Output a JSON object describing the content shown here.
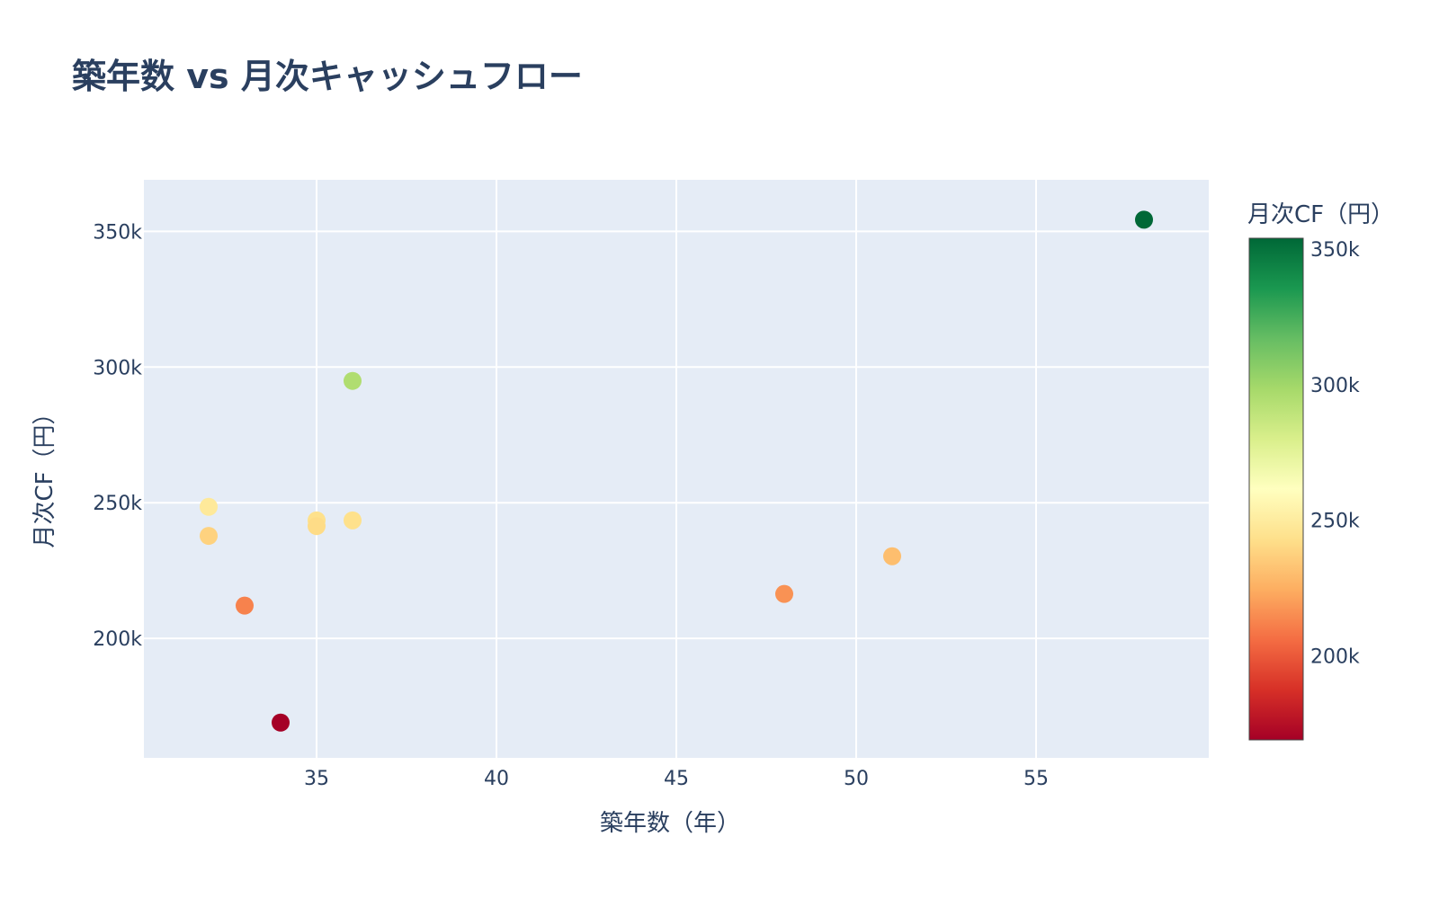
{
  "chart_data": {
    "type": "scatter",
    "title": "築年数 vs 月次キャッシュフロー",
    "xlabel": "築年数（年）",
    "ylabel": "月次CF（円）",
    "xlim": [
      30.2,
      59.8
    ],
    "ylim": [
      156000,
      369000
    ],
    "x_ticks": [
      35,
      40,
      45,
      50,
      55
    ],
    "x_tick_labels": [
      "35",
      "40",
      "45",
      "50",
      "55"
    ],
    "y_ticks": [
      200000,
      250000,
      300000,
      350000
    ],
    "y_tick_labels": [
      "200k",
      "250k",
      "300k",
      "350k"
    ],
    "grid": true,
    "legend": "none",
    "colorbar": {
      "title": "月次CF（円）",
      "colorscale": "RdYlGn",
      "range": [
        169000,
        354000
      ],
      "ticks": [
        200000,
        250000,
        300000,
        350000
      ],
      "tick_labels": [
        "200k",
        "250k",
        "300k",
        "350k"
      ],
      "placement": "right"
    },
    "points": [
      {
        "x": 32,
        "y": 248500
      },
      {
        "x": 32,
        "y": 237800
      },
      {
        "x": 33,
        "y": 212100
      },
      {
        "x": 34,
        "y": 169000
      },
      {
        "x": 35,
        "y": 243500
      },
      {
        "x": 35,
        "y": 241400
      },
      {
        "x": 36,
        "y": 294900
      },
      {
        "x": 36,
        "y": 243500
      },
      {
        "x": 48,
        "y": 216400
      },
      {
        "x": 51,
        "y": 230300
      },
      {
        "x": 58,
        "y": 354300
      }
    ]
  },
  "colors": {
    "plot_background": "#e5ecf6",
    "grid": "#ffffff",
    "text": "#2a3f5f",
    "colorscale_stops": [
      "#a50026",
      "#d73027",
      "#f46d43",
      "#fdae61",
      "#fee08b",
      "#ffffbf",
      "#d9ef8b",
      "#a6d96a",
      "#66bd63",
      "#1a9850",
      "#006837"
    ]
  }
}
